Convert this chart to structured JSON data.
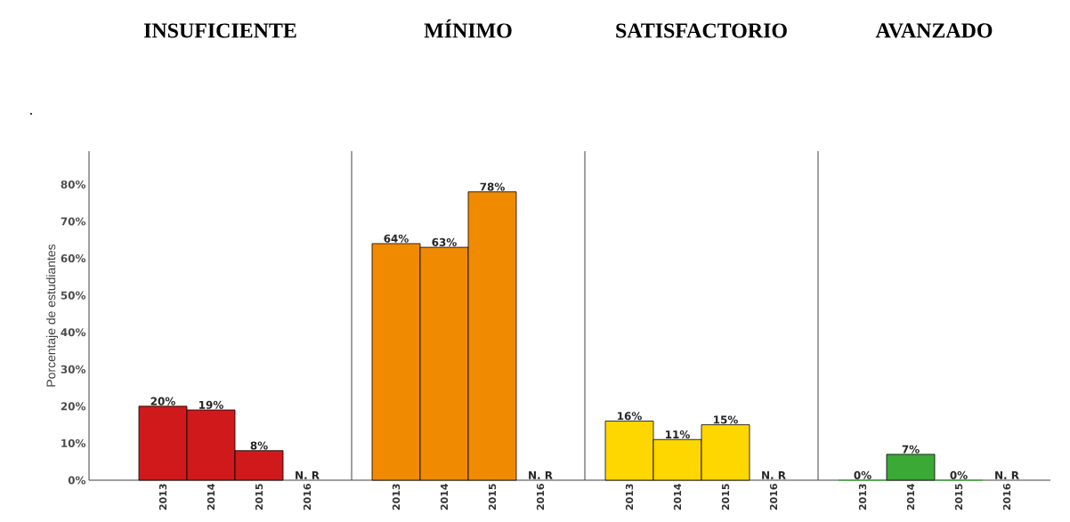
{
  "chart_data": [
    {
      "type": "bar",
      "title": "INSUFICIENTE",
      "ylabel": "Porcentaje de estudiantes",
      "categories": [
        "2013",
        "2014",
        "2015",
        "2016"
      ],
      "values": [
        20,
        19,
        8,
        null
      ],
      "color": "#d0191b",
      "value_labels": [
        "20%",
        "19%",
        "8%",
        "N. R"
      ],
      "ylim": [
        0,
        89
      ],
      "yticks": [
        {
          "value": 0,
          "label": "0%"
        },
        {
          "value": 10,
          "label": "10%"
        },
        {
          "value": 20,
          "label": "20%"
        },
        {
          "value": 30,
          "label": "30%"
        },
        {
          "value": 40,
          "label": "40%"
        },
        {
          "value": 50,
          "label": "50%"
        },
        {
          "value": 60,
          "label": "60%"
        },
        {
          "value": 70,
          "label": "70%"
        },
        {
          "value": 80,
          "label": "80%"
        }
      ],
      "annotations": [
        "."
      ]
    },
    {
      "type": "bar",
      "title": "MÍNIMO",
      "categories": [
        "2013",
        "2014",
        "2015",
        "2016"
      ],
      "values": [
        64,
        63,
        78,
        null
      ],
      "color": "#f08a00",
      "value_labels": [
        "64%",
        "63%",
        "78%",
        "N. R"
      ],
      "ylim": [
        0,
        89
      ],
      "tick_labels": "x"
    },
    {
      "type": "bar",
      "title": "SATISFACTORIO",
      "categories": [
        "2013",
        "2014",
        "2015",
        "2016"
      ],
      "values": [
        16,
        11,
        15,
        null
      ],
      "color": "#ffd700",
      "value_labels": [
        "16%",
        "11%",
        "15%",
        "N. R"
      ],
      "ylim": [
        0,
        89
      ],
      "tick_labels": "x"
    },
    {
      "type": "bar",
      "title": "AVANZADO",
      "categories": [
        "2013",
        "2014",
        "2015",
        "2016"
      ],
      "values": [
        0,
        7,
        0,
        null
      ],
      "color": "#3aa935",
      "value_labels": [
        "0%",
        "7%",
        "0%",
        "N. R"
      ],
      "ylim": [
        0,
        89
      ],
      "tick_labels": "x"
    }
  ]
}
